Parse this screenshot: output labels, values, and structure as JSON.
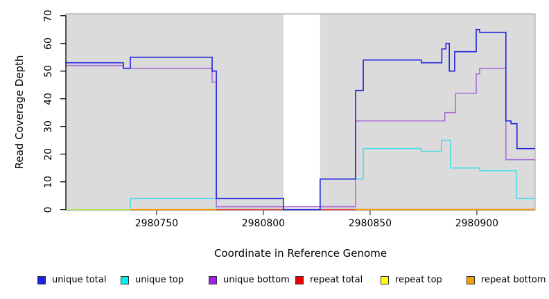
{
  "chart_data": {
    "type": "line",
    "subtype": "step-coverage",
    "title": "",
    "xlabel": "Coordinate in Reference Genome",
    "ylabel": "Read Coverage Depth",
    "xlim": [
      2980707.5,
      2980927.3
    ],
    "ylim": [
      0,
      70
    ],
    "x_ticks": [
      2980750,
      2980800,
      2980850,
      2980900
    ],
    "x_tick_labels": [
      "2980750",
      "2980800",
      "2980850",
      "2980900"
    ],
    "y_ticks": [
      0,
      10,
      20,
      30,
      40,
      50,
      60,
      70
    ],
    "y_tick_labels": [
      "0",
      "10",
      "20",
      "30",
      "40",
      "50",
      "60",
      "70"
    ],
    "grid": false,
    "panel_background": "#DBDBDB",
    "panel_border": "#9C9C9C",
    "gap_region": {
      "x_start": 2980809.4,
      "x_end": 2980826.6,
      "color": "#FFFFFF"
    },
    "legend_position": "bottom",
    "series": [
      {
        "name": "unique top",
        "color": "#49DCE8",
        "opacity": 1,
        "segments": [
          [
            [
              2980707.5,
              0
            ],
            [
              2980737.7,
              4
            ],
            [
              2980778,
              0
            ],
            [
              2980826.6,
              11
            ],
            [
              2980846.8,
              22
            ],
            [
              2980874,
              21
            ],
            [
              2980883.4,
              25
            ],
            [
              2980887.7,
              15
            ],
            [
              2980901.3,
              14
            ],
            [
              2980918.5,
              4
            ],
            [
              2980927.3,
              4
            ]
          ]
        ]
      },
      {
        "name": "repeat top",
        "color": "#FFFF00",
        "opacity": 0.6,
        "segments": [
          [
            [
              2980707.5,
              0
            ],
            [
              2980927.3,
              0
            ]
          ]
        ]
      },
      {
        "name": "unique bottom",
        "color": "#AD6FD9",
        "opacity": 1,
        "segments": [
          [
            [
              2980707.5,
              52
            ],
            [
              2980734.4,
              51
            ],
            [
              2980776,
              46
            ],
            [
              2980778,
              1
            ],
            [
              2980843.2,
              32
            ],
            [
              2980885,
              35
            ],
            [
              2980890,
              42
            ],
            [
              2980899.7,
              49
            ],
            [
              2980901.3,
              51
            ],
            [
              2980913.6,
              18
            ],
            [
              2980927.3,
              18
            ]
          ]
        ]
      },
      {
        "name": "repeat total",
        "color": "#E04343",
        "opacity": 1,
        "segments": [
          [
            [
              2980778,
              0
            ],
            [
              2980927.3,
              0
            ]
          ]
        ]
      },
      {
        "name": "unique total",
        "color": "#2222DE",
        "opacity": 1,
        "segments": [
          [
            [
              2980707.5,
              53
            ],
            [
              2980734.4,
              51
            ],
            [
              2980737.7,
              55
            ],
            [
              2980776,
              50
            ],
            [
              2980778,
              4
            ],
            [
              2980809.4,
              0
            ],
            [
              2980826.6,
              11
            ],
            [
              2980843.2,
              43
            ],
            [
              2980846.8,
              54
            ],
            [
              2980874,
              53
            ],
            [
              2980883.6,
              58
            ],
            [
              2980885.5,
              60
            ],
            [
              2980887.1,
              50
            ],
            [
              2980889.6,
              57
            ],
            [
              2980899.7,
              65
            ],
            [
              2980901.3,
              64
            ],
            [
              2980913.6,
              32
            ],
            [
              2980916,
              31
            ],
            [
              2980918.8,
              22
            ],
            [
              2980927.3,
              22
            ]
          ]
        ]
      },
      {
        "name": "repeat bottom",
        "color": "#FF9D0A",
        "opacity": 1,
        "segments": [
          [
            [
              2980737.7,
              0
            ],
            [
              2980778,
              0
            ]
          ],
          [
            [
              2980843.2,
              0
            ],
            [
              2980927.3,
              0
            ]
          ]
        ]
      }
    ]
  },
  "legend": {
    "items": [
      {
        "label": "unique total",
        "swatch_color": "#2020E0"
      },
      {
        "label": "unique top",
        "swatch_color": "#00F0F0"
      },
      {
        "label": "unique bottom",
        "swatch_color": "#A020F0"
      },
      {
        "label": "repeat total",
        "swatch_color": "#EB0000"
      },
      {
        "label": "repeat top",
        "swatch_color": "#FFFF00"
      },
      {
        "label": "repeat bottom",
        "swatch_color": "#F5A000"
      }
    ]
  }
}
